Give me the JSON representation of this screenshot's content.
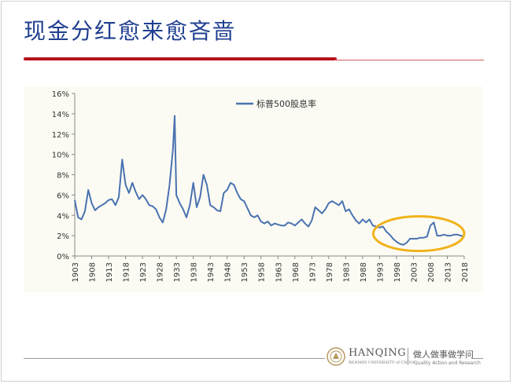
{
  "slide": {
    "title": "现金分红愈来愈吝啬"
  },
  "footer": {
    "brand": "HANQING",
    "brand_sub": "RENMIN UNIVERSITY of CHINA",
    "motto": "做人做事做学问",
    "motto_sub": "Quality Action and Research"
  },
  "colors": {
    "line": "#4a72b0",
    "highlight_ellipse": "#f1b21b",
    "title": "#1f3f8f",
    "accent_bar": "#b5121b"
  },
  "chart_data": {
    "type": "line",
    "title": "",
    "xlabel": "",
    "ylabel": "",
    "ylim": [
      0,
      16
    ],
    "ytick_labels": [
      "0%",
      "2%",
      "4%",
      "6%",
      "8%",
      "10%",
      "12%",
      "14%",
      "16%"
    ],
    "ytick_values": [
      0,
      2,
      4,
      6,
      8,
      10,
      12,
      14,
      16
    ],
    "xlim": [
      1903,
      2018
    ],
    "xtick_labels": [
      "1903",
      "1908",
      "1913",
      "1918",
      "1923",
      "1928",
      "1933",
      "1938",
      "1943",
      "1948",
      "1953",
      "1958",
      "1963",
      "1968",
      "1973",
      "1978",
      "1983",
      "1988",
      "1993",
      "1998",
      "2003",
      "2008",
      "2013",
      "2018"
    ],
    "xtick_values": [
      1903,
      1908,
      1913,
      1918,
      1923,
      1928,
      1933,
      1938,
      1943,
      1948,
      1953,
      1958,
      1963,
      1968,
      1973,
      1978,
      1983,
      1988,
      1993,
      1998,
      2003,
      2008,
      2013,
      2018
    ],
    "legend_position": "top-left",
    "grid": false,
    "series": [
      {
        "name": "标普500股息率",
        "x": [
          1903,
          1904,
          1905,
          1906,
          1907,
          1908,
          1909,
          1910,
          1911,
          1912,
          1913,
          1914,
          1915,
          1916,
          1917,
          1918,
          1919,
          1920,
          1921,
          1922,
          1923,
          1924,
          1925,
          1926,
          1927,
          1928,
          1929,
          1930,
          1931,
          1932,
          1932.5,
          1933,
          1934,
          1935,
          1936,
          1937,
          1938,
          1939,
          1940,
          1941,
          1942,
          1943,
          1944,
          1945,
          1946,
          1947,
          1948,
          1949,
          1950,
          1951,
          1952,
          1953,
          1954,
          1955,
          1956,
          1957,
          1958,
          1959,
          1960,
          1961,
          1962,
          1963,
          1964,
          1965,
          1966,
          1967,
          1968,
          1969,
          1970,
          1971,
          1972,
          1973,
          1974,
          1975,
          1976,
          1977,
          1978,
          1979,
          1980,
          1981,
          1982,
          1983,
          1984,
          1985,
          1986,
          1987,
          1988,
          1989,
          1990,
          1991,
          1992,
          1993,
          1994,
          1995,
          1996,
          1997,
          1998,
          1999,
          2000,
          2001,
          2002,
          2003,
          2004,
          2005,
          2006,
          2007,
          2008,
          2009,
          2010,
          2011,
          2012,
          2013,
          2014,
          2015,
          2016,
          2017,
          2018
        ],
        "values": [
          5.5,
          3.8,
          3.6,
          4.4,
          6.5,
          5.2,
          4.5,
          4.8,
          5.0,
          5.2,
          5.5,
          5.6,
          5.0,
          5.8,
          9.5,
          7.0,
          6.2,
          7.2,
          6.3,
          5.6,
          6.0,
          5.6,
          5.0,
          4.9,
          4.6,
          3.8,
          3.3,
          4.6,
          7.0,
          10.5,
          13.8,
          6.0,
          5.2,
          4.6,
          3.8,
          5.0,
          7.2,
          4.8,
          5.8,
          8.0,
          7.0,
          5.0,
          4.8,
          4.5,
          4.4,
          6.2,
          6.5,
          7.2,
          7.0,
          6.2,
          5.6,
          5.4,
          4.7,
          4.0,
          3.8,
          4.0,
          3.4,
          3.2,
          3.4,
          3.0,
          3.2,
          3.1,
          3.0,
          3.0,
          3.3,
          3.2,
          3.0,
          3.3,
          3.6,
          3.2,
          2.9,
          3.5,
          4.8,
          4.5,
          4.2,
          4.6,
          5.2,
          5.4,
          5.2,
          5.0,
          5.4,
          4.4,
          4.6,
          4.0,
          3.5,
          3.2,
          3.6,
          3.3,
          3.6,
          3.0,
          2.9,
          2.8,
          2.9,
          2.4,
          2.1,
          1.7,
          1.4,
          1.2,
          1.1,
          1.3,
          1.7,
          1.7,
          1.7,
          1.8,
          1.8,
          1.9,
          3.0,
          3.3,
          2.0,
          2.0,
          2.1,
          2.0,
          2.0,
          2.1,
          2.1,
          2.0,
          1.9
        ]
      }
    ],
    "annotation": {
      "type": "ellipse",
      "highlight_from": 1993,
      "highlight_to": 2018,
      "color": "#f1b21b"
    }
  }
}
